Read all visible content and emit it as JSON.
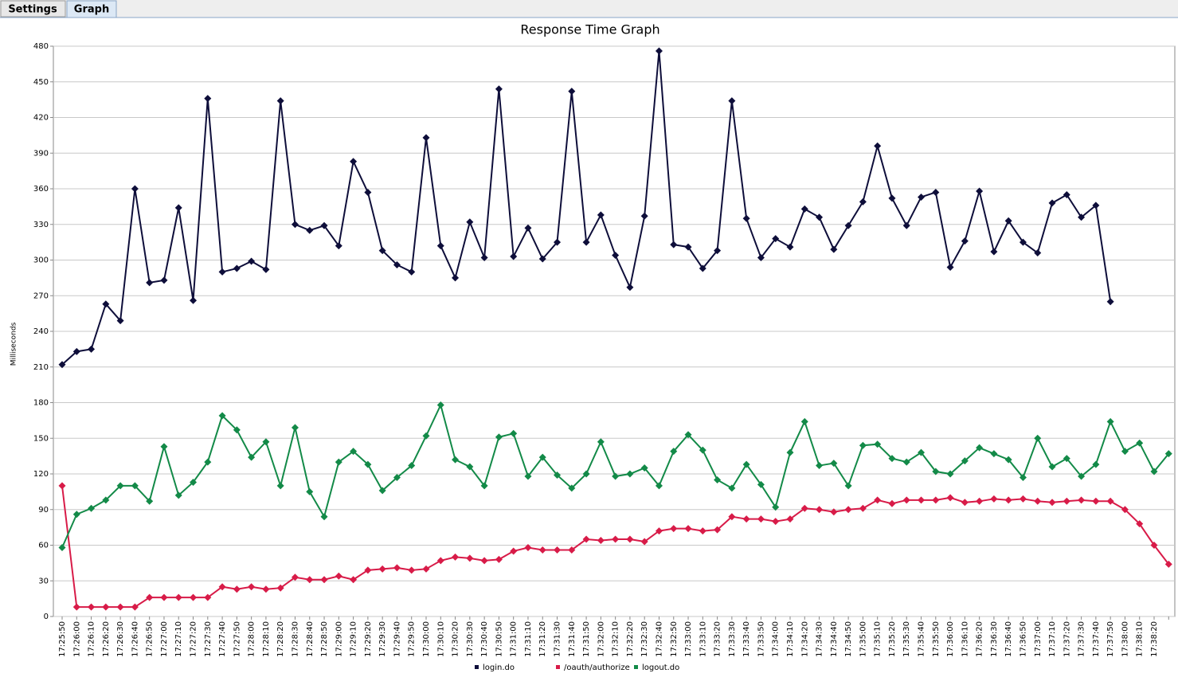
{
  "tabs": [
    "Settings",
    "Graph"
  ],
  "chart_data": {
    "type": "line",
    "title": "Response Time Graph",
    "ylabel": "Milliseconds",
    "categories": [
      "17:25:50",
      "17:26:00",
      "17:26:10",
      "17:26:20",
      "17:26:30",
      "17:26:40",
      "17:26:50",
      "17:27:00",
      "17:27:10",
      "17:27:20",
      "17:27:30",
      "17:27:40",
      "17:27:50",
      "17:28:00",
      "17:28:10",
      "17:28:20",
      "17:28:30",
      "17:28:40",
      "17:28:50",
      "17:29:00",
      "17:29:10",
      "17:29:20",
      "17:29:30",
      "17:29:40",
      "17:29:50",
      "17:30:00",
      "17:30:10",
      "17:30:20",
      "17:30:30",
      "17:30:40",
      "17:30:50",
      "17:31:00",
      "17:31:10",
      "17:31:20",
      "17:31:30",
      "17:31:40",
      "17:31:50",
      "17:32:00",
      "17:32:10",
      "17:32:20",
      "17:32:30",
      "17:32:40",
      "17:32:50",
      "17:33:00",
      "17:33:10",
      "17:33:20",
      "17:33:30",
      "17:33:40",
      "17:33:50",
      "17:34:00",
      "17:34:10",
      "17:34:20",
      "17:34:30",
      "17:34:40",
      "17:34:50",
      "17:35:00",
      "17:35:10",
      "17:35:20",
      "17:35:30",
      "17:35:40",
      "17:35:50",
      "17:36:00",
      "17:36:10",
      "17:36:20",
      "17:36:30",
      "17:36:40",
      "17:36:50",
      "17:37:00",
      "17:37:10",
      "17:37:20",
      "17:37:30",
      "17:37:40",
      "17:37:50",
      "17:38:00",
      "17:38:10",
      "17:38:20",
      null
    ],
    "series": [
      {
        "name": "login.do",
        "color": "#0e0e3a",
        "values": [
          212,
          223,
          225,
          263,
          249,
          360,
          281,
          283,
          344,
          266,
          436,
          290,
          293,
          299,
          292,
          434,
          330,
          325,
          329,
          312,
          383,
          357,
          308,
          296,
          290,
          403,
          312,
          285,
          332,
          302,
          444,
          303,
          327,
          301,
          315,
          442,
          315,
          338,
          304,
          277,
          337,
          476,
          313,
          311,
          293,
          308,
          434,
          335,
          302,
          318,
          311,
          343,
          336,
          309,
          329,
          349,
          396,
          352,
          329,
          353,
          357,
          294,
          316,
          358,
          307,
          333,
          315,
          306,
          348,
          355,
          336,
          346,
          265,
          null,
          null,
          null,
          null
        ]
      },
      {
        "name": "/oauth/authorize",
        "color": "#d81b48",
        "values": [
          110,
          8,
          8,
          8,
          8,
          8,
          16,
          16,
          16,
          16,
          16,
          25,
          23,
          25,
          23,
          24,
          33,
          31,
          31,
          34,
          31,
          39,
          40,
          41,
          39,
          40,
          47,
          50,
          49,
          47,
          48,
          55,
          58,
          56,
          56,
          56,
          65,
          64,
          65,
          65,
          63,
          72,
          74,
          74,
          72,
          73,
          84,
          82,
          82,
          80,
          82,
          91,
          90,
          88,
          90,
          91,
          98,
          95,
          98,
          98,
          98,
          100,
          96,
          97,
          99,
          98,
          99,
          97,
          96,
          97,
          98,
          97,
          97,
          90,
          78,
          60,
          44
        ]
      },
      {
        "name": "logout.do",
        "color": "#138a48",
        "values": [
          58,
          86,
          91,
          98,
          110,
          110,
          97,
          143,
          102,
          113,
          130,
          169,
          157,
          134,
          147,
          110,
          159,
          105,
          84,
          130,
          139,
          128,
          106,
          117,
          127,
          152,
          178,
          132,
          126,
          110,
          151,
          154,
          118,
          134,
          119,
          108,
          120,
          147,
          118,
          120,
          125,
          110,
          139,
          153,
          140,
          115,
          108,
          128,
          111,
          92,
          138,
          164,
          127,
          129,
          110,
          144,
          145,
          133,
          130,
          138,
          122,
          120,
          131,
          142,
          137,
          132,
          117,
          150,
          126,
          133,
          118,
          128,
          164,
          139,
          146,
          122,
          137
        ]
      }
    ],
    "ylim": [
      0,
      480
    ],
    "yticks": [
      0,
      30,
      60,
      90,
      120,
      150,
      180,
      210,
      240,
      270,
      300,
      330,
      360,
      390,
      420,
      450,
      480
    ],
    "grid": true,
    "legend": "bottom"
  }
}
